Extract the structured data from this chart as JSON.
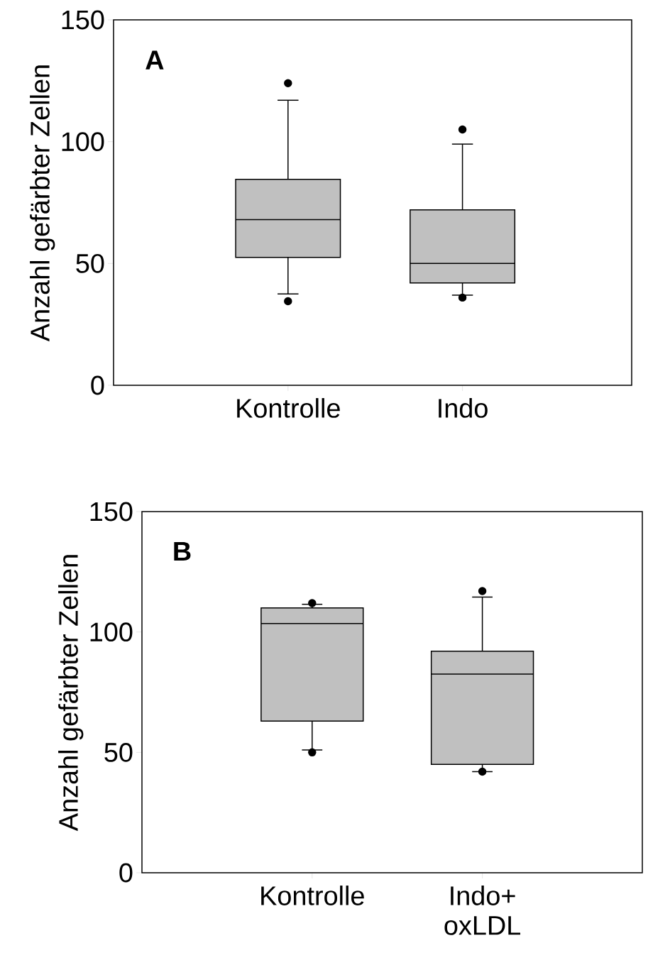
{
  "chart_data": [
    {
      "type": "box",
      "ylabel": "Anzahl gefärbter Zellen",
      "annotations": [
        "A"
      ],
      "categories": [
        "Kontrolle",
        "Indo"
      ],
      "color": "#c0c0c0",
      "marker": "circle",
      "ylim": [
        0,
        150
      ],
      "yticks": [
        0,
        50,
        100,
        150
      ],
      "boxes": [
        {
          "low": 37.5,
          "q1": 52.5,
          "median": 68,
          "q3": 84.5,
          "high": 117,
          "outliers": [
            124,
            34.5
          ]
        },
        {
          "low": 37,
          "q1": 42,
          "median": 50,
          "q3": 72,
          "high": 99,
          "outliers": [
            105,
            36
          ]
        }
      ]
    },
    {
      "type": "box",
      "ylabel": "Anzahl gefärbter Zellen",
      "annotations": [
        "B"
      ],
      "categories": [
        "Kontrolle",
        "Indo+ oxLDL"
      ],
      "color": "#c0c0c0",
      "marker": "circle",
      "ylim": [
        0,
        150
      ],
      "yticks": [
        0,
        50,
        100,
        150
      ],
      "boxes": [
        {
          "low": 51,
          "q1": 63,
          "median": 103.5,
          "q3": 110,
          "high": 111.5,
          "outliers": [
            112,
            50
          ]
        },
        {
          "low": 42,
          "q1": 45,
          "median": 82.5,
          "q3": 92,
          "high": 114.5,
          "outliers": [
            117,
            42
          ]
        }
      ]
    }
  ]
}
